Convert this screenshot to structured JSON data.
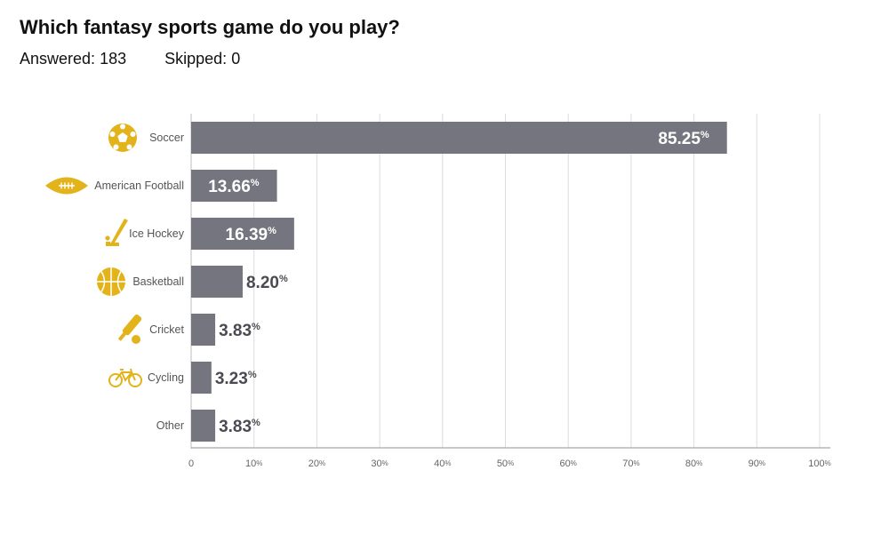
{
  "header": {
    "question": "Which fantasy sports game do you play?",
    "answered_label": "Answered:",
    "answered_value": "183",
    "skipped_label": "Skipped:",
    "skipped_value": "0"
  },
  "colors": {
    "bar": "#75757f",
    "icon": "#e3b31c",
    "grid": "#dcdcdc",
    "value_inside": "#ffffff",
    "value_outside": "#4a4a52"
  },
  "chart_data": {
    "type": "bar",
    "orientation": "horizontal",
    "categories": [
      "Soccer",
      "American Football",
      "Ice Hockey",
      "Basketball",
      "Cricket",
      "Cycling",
      "Other"
    ],
    "icons": [
      "soccer-ball-icon",
      "american-football-icon",
      "hockey-stick-icon",
      "basketball-icon",
      "cricket-bat-icon",
      "bicycle-icon",
      ""
    ],
    "values": [
      85.25,
      13.66,
      16.39,
      8.2,
      3.83,
      3.23,
      3.83
    ],
    "value_labels": [
      "85.25",
      "13.66",
      "16.39",
      "8.20",
      "3.83",
      "3.23",
      "3.83"
    ],
    "value_unit": "%",
    "xlim": [
      0,
      100
    ],
    "xticks": [
      0,
      10,
      20,
      30,
      40,
      50,
      60,
      70,
      80,
      90,
      100
    ],
    "xtick_labels": [
      "0",
      "10",
      "20",
      "30",
      "40",
      "50",
      "60",
      "70",
      "80",
      "90",
      "100"
    ],
    "tick_unit": "%",
    "grid": true,
    "legend": "none"
  }
}
